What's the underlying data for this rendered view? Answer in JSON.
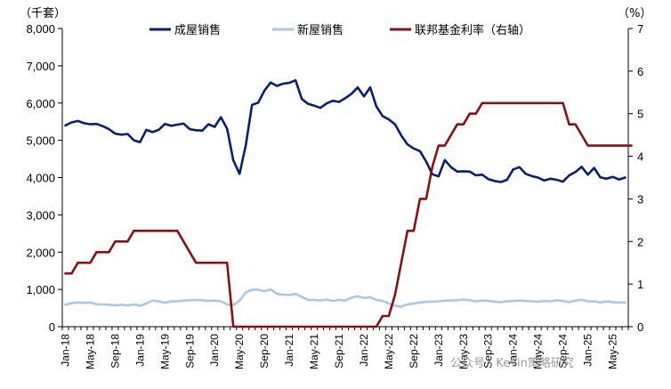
{
  "chart_data": {
    "type": "line",
    "y_left_unit": "（千套）",
    "y_right_unit": "（%）",
    "ylim_left": [
      0,
      8000
    ],
    "ylim_right": [
      0,
      7
    ],
    "y_left_ticks": [
      "0",
      "1,000",
      "2,000",
      "3,000",
      "4,000",
      "5,000",
      "6,000",
      "7,000",
      "8,000"
    ],
    "y_right_ticks": [
      "0",
      "1",
      "2",
      "3",
      "4",
      "5",
      "6",
      "7"
    ],
    "x_tick_labels": [
      "Jan-18",
      "May-18",
      "Sep-18",
      "Jan-19",
      "May-19",
      "Sep-19",
      "Jan-20",
      "May-20",
      "Sep-20",
      "Jan-21",
      "May-21",
      "Sep-21",
      "Jan-22",
      "May-22",
      "Sep-22",
      "Jan-23",
      "May-23",
      "Sep-23",
      "Jan-24",
      "May-24",
      "Sep-24",
      "Jan-25",
      "May-25"
    ],
    "grid": false,
    "legend_position": "top",
    "series": [
      {
        "name": "成屋销售",
        "axis": "left",
        "color": "#0a1e78",
        "values": [
          5400,
          5480,
          5520,
          5460,
          5430,
          5440,
          5380,
          5300,
          5180,
          5150,
          5170,
          5000,
          4950,
          5280,
          5220,
          5280,
          5440,
          5390,
          5420,
          5450,
          5300,
          5270,
          5260,
          5430,
          5360,
          5620,
          5310,
          4460,
          4100,
          4870,
          5950,
          6010,
          6330,
          6550,
          6460,
          6520,
          6540,
          6610,
          6110,
          5980,
          5930,
          5870,
          5990,
          6060,
          6030,
          6130,
          6250,
          6420,
          6180,
          6420,
          5910,
          5650,
          5560,
          5430,
          5130,
          4890,
          4780,
          4710,
          4430,
          4090,
          4030,
          4470,
          4280,
          4160,
          4170,
          4160,
          4060,
          4080,
          3960,
          3910,
          3880,
          3940,
          4220,
          4280,
          4100,
          4040,
          4000,
          3920,
          3970,
          3940,
          3890,
          4060,
          4150,
          4290,
          4080,
          4260,
          4010,
          3970,
          4020,
          3950,
          4000
        ]
      },
      {
        "name": "新屋销售",
        "axis": "left",
        "color": "#a8c8e6",
        "values": [
          590,
          630,
          650,
          640,
          650,
          600,
          600,
          590,
          570,
          590,
          570,
          600,
          560,
          620,
          700,
          680,
          640,
          680,
          680,
          700,
          710,
          720,
          710,
          690,
          700,
          680,
          600,
          580,
          700,
          920,
          990,
          990,
          950,
          1000,
          880,
          860,
          850,
          880,
          800,
          720,
          720,
          700,
          730,
          690,
          720,
          700,
          780,
          820,
          770,
          790,
          720,
          690,
          620,
          560,
          540,
          600,
          620,
          650,
          670,
          670,
          680,
          700,
          700,
          710,
          730,
          710,
          680,
          700,
          690,
          670,
          660,
          680,
          690,
          700,
          690,
          680,
          670,
          690,
          680,
          710,
          690,
          660,
          700,
          720,
          680,
          680,
          650,
          680,
          660,
          650,
          650
        ]
      },
      {
        "name": "联邦基金利率（右轴）",
        "axis": "right",
        "color": "#8b0f14",
        "values": [
          1.25,
          1.25,
          1.5,
          1.5,
          1.5,
          1.75,
          1.75,
          1.75,
          2.0,
          2.0,
          2.0,
          2.25,
          2.25,
          2.25,
          2.25,
          2.25,
          2.25,
          2.25,
          2.25,
          2.0,
          1.75,
          1.5,
          1.5,
          1.5,
          1.5,
          1.5,
          1.5,
          0.0,
          0.0,
          0.0,
          0.0,
          0.0,
          0.0,
          0.0,
          0.0,
          0.0,
          0.0,
          0.0,
          0.0,
          0.0,
          0.0,
          0.0,
          0.0,
          0.0,
          0.0,
          0.0,
          0.0,
          0.0,
          0.0,
          0.0,
          0.0,
          0.25,
          0.25,
          0.75,
          1.5,
          2.25,
          2.25,
          3.0,
          3.0,
          3.75,
          4.25,
          4.25,
          4.5,
          4.75,
          4.75,
          5.0,
          5.0,
          5.25,
          5.25,
          5.25,
          5.25,
          5.25,
          5.25,
          5.25,
          5.25,
          5.25,
          5.25,
          5.25,
          5.25,
          5.25,
          5.25,
          4.75,
          4.75,
          4.5,
          4.25,
          4.25,
          4.25,
          4.25,
          4.25,
          4.25,
          4.25,
          4.25
        ]
      }
    ]
  },
  "watermark": "公众号 · Kevin策略研究"
}
